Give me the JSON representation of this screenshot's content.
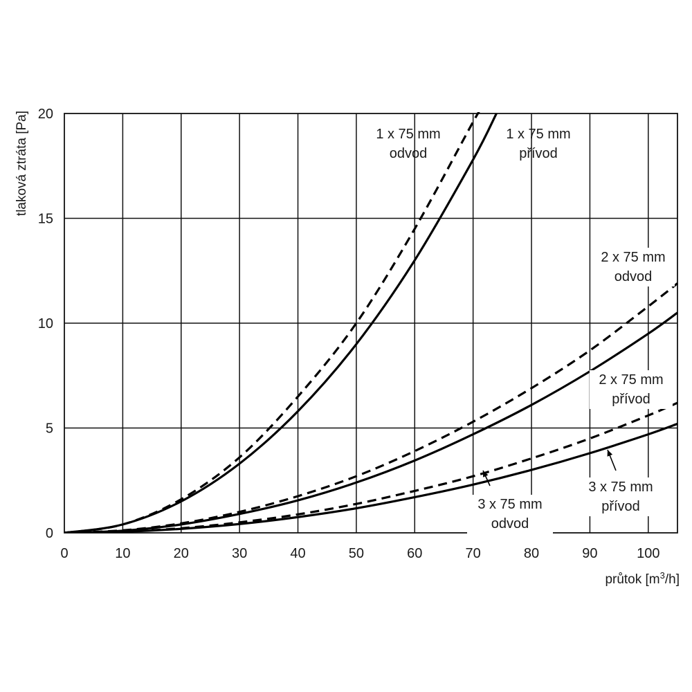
{
  "chart_data": {
    "type": "line",
    "title": "",
    "xlabel": "průtok [m³/h]",
    "ylabel": "tlaková ztráta [Pa]",
    "xlim": [
      0,
      105
    ],
    "ylim": [
      0,
      20
    ],
    "xticks": [
      0,
      10,
      20,
      30,
      40,
      50,
      60,
      70,
      80,
      90,
      100
    ],
    "yticks": [
      0,
      5,
      10,
      15,
      20
    ],
    "grid": true,
    "legend": "none (inline labels)",
    "series": [
      {
        "name": "1 x 75 mm odvod",
        "label_lines": [
          "1 x 75 mm",
          "odvod"
        ],
        "style": "dashed",
        "color": "#000000",
        "x": [
          0,
          10,
          20,
          30,
          40,
          50,
          60,
          70,
          71
        ],
        "y": [
          0,
          0.4,
          1.6,
          3.6,
          6.5,
          10.0,
          14.5,
          19.6,
          20.0
        ]
      },
      {
        "name": "1 x 75 mm přívod",
        "label_lines": [
          "1 x 75 mm",
          "přívod"
        ],
        "style": "solid",
        "color": "#000000",
        "x": [
          0,
          10,
          20,
          30,
          40,
          50,
          60,
          70,
          74
        ],
        "y": [
          0,
          0.4,
          1.5,
          3.3,
          5.8,
          9.0,
          13.0,
          17.8,
          20.0
        ]
      },
      {
        "name": "2 x 75 mm odvod",
        "label_lines": [
          "2 x 75 mm",
          "odvod"
        ],
        "style": "dashed",
        "color": "#000000",
        "x": [
          0,
          10,
          20,
          30,
          40,
          50,
          60,
          70,
          80,
          90,
          100,
          105
        ],
        "y": [
          0,
          0.12,
          0.45,
          1.0,
          1.75,
          2.7,
          3.9,
          5.3,
          6.9,
          8.7,
          10.8,
          11.9
        ]
      },
      {
        "name": "2 x 75 mm přívod",
        "label_lines": [
          "2 x 75 mm",
          "přívod"
        ],
        "style": "solid",
        "color": "#000000",
        "x": [
          0,
          10,
          20,
          30,
          40,
          50,
          60,
          70,
          80,
          90,
          100,
          105
        ],
        "y": [
          0,
          0.1,
          0.4,
          0.9,
          1.55,
          2.4,
          3.45,
          4.7,
          6.1,
          7.7,
          9.5,
          10.5
        ]
      },
      {
        "name": "3 x 75 mm odvod",
        "label_lines": [
          "3 x 75 mm",
          "odvod"
        ],
        "style": "dashed",
        "color": "#000000",
        "x": [
          0,
          10,
          20,
          30,
          40,
          50,
          60,
          70,
          80,
          90,
          100,
          105
        ],
        "y": [
          0,
          0.06,
          0.22,
          0.5,
          0.88,
          1.38,
          2.0,
          2.7,
          3.55,
          4.5,
          5.6,
          6.2
        ]
      },
      {
        "name": "3 x 75 mm přívod",
        "label_lines": [
          "3 x 75 mm",
          "přívod"
        ],
        "style": "solid",
        "color": "#000000",
        "x": [
          0,
          10,
          20,
          30,
          40,
          50,
          60,
          70,
          80,
          90,
          100,
          105
        ],
        "y": [
          0,
          0.05,
          0.19,
          0.42,
          0.75,
          1.17,
          1.7,
          2.3,
          3.0,
          3.8,
          4.7,
          5.2
        ]
      }
    ]
  }
}
